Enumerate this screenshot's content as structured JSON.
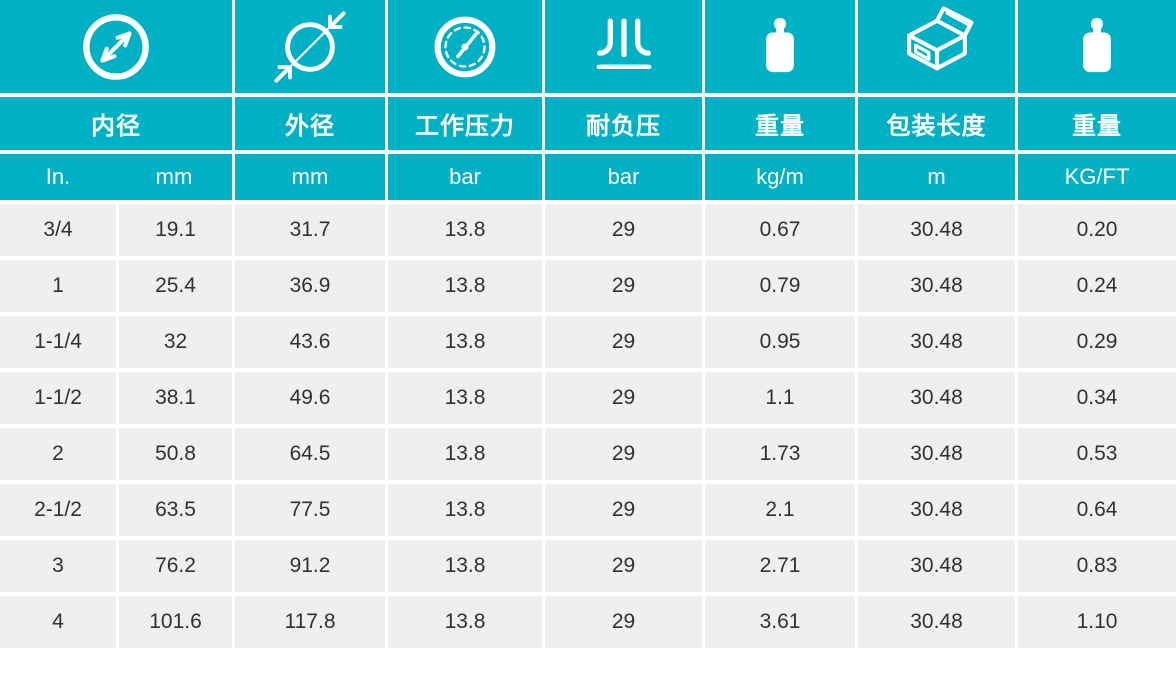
{
  "theme": {
    "teal": "#00b0c5",
    "cell_gray": "#efefef",
    "text_dark": "#313131",
    "header_text": "#ffffff"
  },
  "table": {
    "columns": [
      {
        "icon": "inner-diameter-icon",
        "label": "内径",
        "units": [
          "In.",
          "mm"
        ]
      },
      {
        "icon": "outer-diameter-icon",
        "label": "外径",
        "unit": "mm"
      },
      {
        "icon": "pressure-gauge-icon",
        "label": "工作压力",
        "unit": "bar"
      },
      {
        "icon": "vacuum-resistance-icon",
        "label": "耐负压",
        "unit": "bar"
      },
      {
        "icon": "weight-icon",
        "label": "重量",
        "unit": "kg/m"
      },
      {
        "icon": "package-box-icon",
        "label": "包装长度",
        "unit": "m"
      },
      {
        "icon": "weight-icon",
        "label": "重量",
        "unit": "KG/FT"
      }
    ],
    "rows": [
      [
        "3/4",
        "19.1",
        "31.7",
        "13.8",
        "29",
        "0.67",
        "30.48",
        "0.20"
      ],
      [
        "1",
        "25.4",
        "36.9",
        "13.8",
        "29",
        "0.79",
        "30.48",
        "0.24"
      ],
      [
        "1-1/4",
        "32",
        "43.6",
        "13.8",
        "29",
        "0.95",
        "30.48",
        "0.29"
      ],
      [
        "1-1/2",
        "38.1",
        "49.6",
        "13.8",
        "29",
        "1.1",
        "30.48",
        "0.34"
      ],
      [
        "2",
        "50.8",
        "64.5",
        "13.8",
        "29",
        "1.73",
        "30.48",
        "0.53"
      ],
      [
        "2-1/2",
        "63.5",
        "77.5",
        "13.8",
        "29",
        "2.1",
        "30.48",
        "0.64"
      ],
      [
        "3",
        "76.2",
        "91.2",
        "13.8",
        "29",
        "2.71",
        "30.48",
        "0.83"
      ],
      [
        "4",
        "101.6",
        "117.8",
        "13.8",
        "29",
        "3.61",
        "30.48",
        "1.10"
      ]
    ]
  }
}
